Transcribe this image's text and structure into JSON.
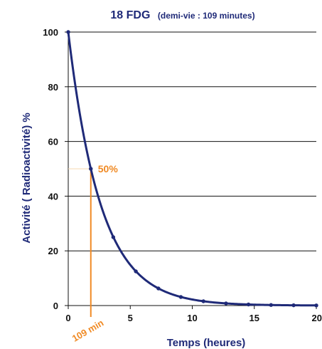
{
  "title": {
    "main": "18 FDG",
    "sub": "(demi-vie : 109 minutes)"
  },
  "chart_data": {
    "type": "line",
    "xlabel": "Temps (heures)",
    "ylabel": "Activité ( Radioactivité) %",
    "xlim": [
      0,
      20
    ],
    "ylim": [
      0,
      100
    ],
    "x_ticks": [
      "0",
      "5",
      "10",
      "15",
      "20"
    ],
    "y_ticks": [
      "0",
      "20",
      "40",
      "60",
      "80",
      "100"
    ],
    "grid": "horizontal",
    "series": [
      {
        "x": [
          0,
          1.82,
          3.63,
          5.45,
          7.27,
          9.08,
          10.9,
          12.72,
          14.53,
          16.35,
          18.17,
          20
        ],
        "y": [
          100,
          50,
          25,
          12.5,
          6.25,
          3.125,
          1.5625,
          0.78,
          0.39,
          0.2,
          0.1,
          0.05
        ],
        "color": "#1f2a78"
      }
    ],
    "annotations": {
      "half_life_x": 1.82,
      "half_life_y": 50,
      "half_life_label": "50%",
      "half_life_time_label": "109 min",
      "color": "#f08a24"
    }
  }
}
